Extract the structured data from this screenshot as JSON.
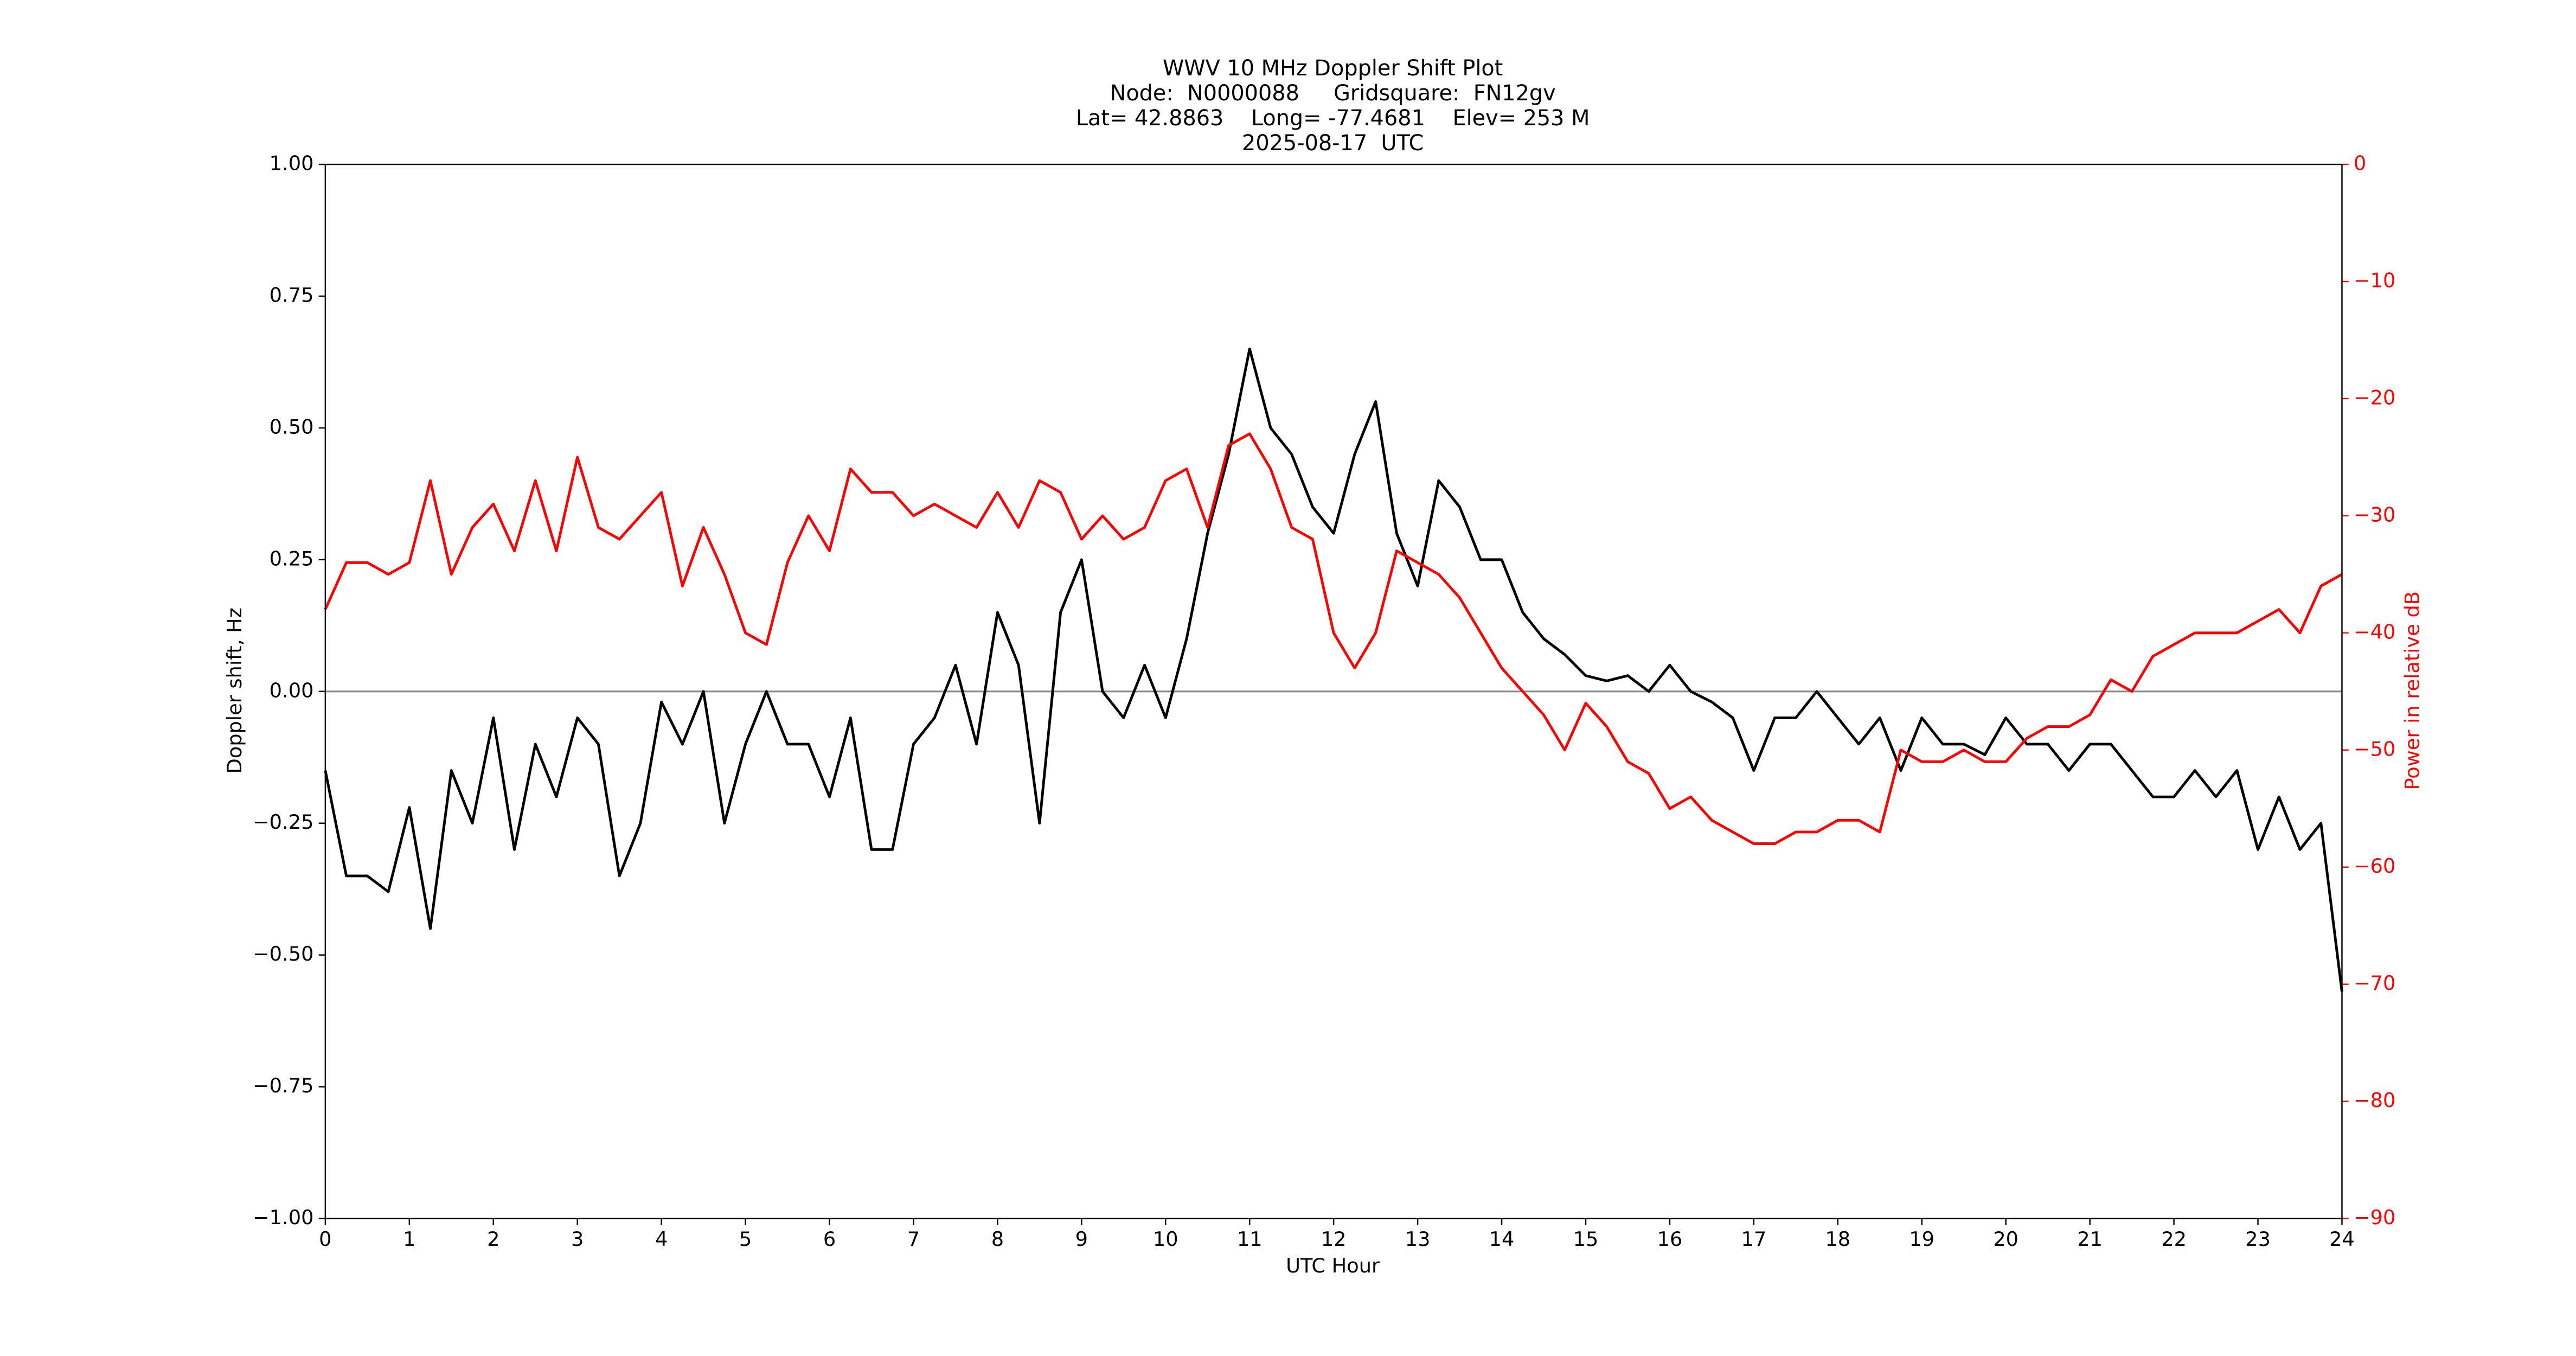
{
  "chart_data": {
    "type": "line",
    "title": [
      "WWV 10 MHz Doppler Shift Plot",
      "Node:  N0000088     Gridsquare:  FN12gv",
      "Lat= 42.8863    Long= -77.4681    Elev= 253 M",
      "2025-08-17  UTC"
    ],
    "xlabel": "UTC Hour",
    "ylabel": "Doppler shift, Hz",
    "y2label": "Power in relative dB",
    "xlim": [
      0,
      24
    ],
    "ylim": [
      -1,
      1
    ],
    "y2lim": [
      -90,
      0
    ],
    "xticks": [
      0,
      1,
      2,
      3,
      4,
      5,
      6,
      7,
      8,
      9,
      10,
      11,
      12,
      13,
      14,
      15,
      16,
      17,
      18,
      19,
      20,
      21,
      22,
      23,
      24
    ],
    "yticks": [
      {
        "value": -1,
        "label": "−1.00"
      },
      {
        "value": -0.75,
        "label": "−0.75"
      },
      {
        "value": -0.5,
        "label": "−0.50"
      },
      {
        "value": -0.25,
        "label": "−0.25"
      },
      {
        "value": 0,
        "label": "0.00"
      },
      {
        "value": 0.25,
        "label": "0.25"
      },
      {
        "value": 0.5,
        "label": "0.50"
      },
      {
        "value": 0.75,
        "label": "0.75"
      },
      {
        "value": 1,
        "label": "1.00"
      }
    ],
    "y2ticks": [
      {
        "value": -90,
        "label": "−90"
      },
      {
        "value": -80,
        "label": "−80"
      },
      {
        "value": -70,
        "label": "−70"
      },
      {
        "value": -60,
        "label": "−60"
      },
      {
        "value": -50,
        "label": "−50"
      },
      {
        "value": -40,
        "label": "−40"
      },
      {
        "value": -30,
        "label": "−30"
      },
      {
        "value": -20,
        "label": "−20"
      },
      {
        "value": -10,
        "label": "−10"
      },
      0
    ],
    "hlines": [
      0
    ],
    "hline_color": "#888888",
    "x": [
      0,
      0.25,
      0.5,
      0.75,
      1,
      1.25,
      1.5,
      1.75,
      2,
      2.25,
      2.5,
      2.75,
      3,
      3.25,
      3.5,
      3.75,
      4,
      4.25,
      4.5,
      4.75,
      5,
      5.25,
      5.5,
      5.75,
      6,
      6.25,
      6.5,
      6.75,
      7,
      7.25,
      7.5,
      7.75,
      8,
      8.25,
      8.5,
      8.75,
      9,
      9.25,
      9.5,
      9.75,
      10,
      10.25,
      10.5,
      10.75,
      11,
      11.25,
      11.5,
      11.75,
      12,
      12.25,
      12.5,
      12.75,
      13,
      13.25,
      13.5,
      13.75,
      14,
      14.25,
      14.5,
      14.75,
      15,
      15.25,
      15.5,
      15.75,
      16,
      16.25,
      16.5,
      16.75,
      17,
      17.25,
      17.5,
      17.75,
      18,
      18.25,
      18.5,
      18.75,
      19,
      19.25,
      19.5,
      19.75,
      20,
      20.25,
      20.5,
      20.75,
      21,
      21.25,
      21.5,
      21.75,
      22,
      22.25,
      22.5,
      22.75,
      23,
      23.25,
      23.5,
      23.75,
      24
    ],
    "series": [
      {
        "name": "Doppler shift",
        "color": "#000000",
        "values": [
          -0.15,
          -0.35,
          -0.35,
          -0.38,
          -0.22,
          -0.45,
          -0.15,
          -0.25,
          -0.05,
          -0.3,
          -0.1,
          -0.2,
          -0.05,
          -0.1,
          -0.35,
          -0.25,
          -0.02,
          -0.1,
          0,
          -0.25,
          -0.1,
          0,
          -0.1,
          -0.1,
          -0.2,
          -0.05,
          -0.3,
          -0.3,
          -0.1,
          -0.05,
          0.05,
          -0.1,
          0.15,
          0.05,
          -0.25,
          0.15,
          0.25,
          0,
          -0.05,
          0.05,
          -0.05,
          0.1,
          0.3,
          0.45,
          0.65,
          0.5,
          0.45,
          0.35,
          0.3,
          0.45,
          0.55,
          0.3,
          0.2,
          0.4,
          0.35,
          0.25,
          0.25,
          0.15,
          0.1,
          0.07,
          0.03,
          0.02,
          0.03,
          0,
          0.05,
          0,
          -0.02,
          -0.05,
          -0.15,
          -0.05,
          -0.05,
          0,
          -0.05,
          -0.1,
          -0.05,
          -0.15,
          -0.05,
          -0.1,
          -0.1,
          -0.12,
          -0.05,
          -0.1,
          -0.1,
          -0.15,
          -0.1,
          -0.1,
          -0.15,
          -0.2,
          -0.2,
          -0.15,
          -0.2,
          -0.15,
          -0.3,
          -0.2,
          -0.3,
          -0.25,
          -0.57
        ]
      },
      {
        "name": "Power",
        "color": "#ff0000",
        "axis": "y2",
        "values": [
          -38,
          -34,
          -34,
          -35,
          -34,
          -27,
          -35,
          -31,
          -29,
          -33,
          -27,
          -33,
          -25,
          -31,
          -32,
          -30,
          -28,
          -36,
          -31,
          -35,
          -40,
          -41,
          -34,
          -30,
          -33,
          -26,
          -28,
          -28,
          -30,
          -29,
          -30,
          -31,
          -28,
          -31,
          -27,
          -28,
          -32,
          -30,
          -32,
          -31,
          -27,
          -26,
          -31,
          -24,
          -23,
          -26,
          -31,
          -32,
          -40,
          -43,
          -40,
          -33,
          -34,
          -35,
          -37,
          -40,
          -43,
          -45,
          -47,
          -50,
          -46,
          -48,
          -51,
          -52,
          -55,
          -54,
          -56,
          -57,
          -58,
          -58,
          -57,
          -57,
          -56,
          -56,
          -57,
          -50,
          -51,
          -51,
          -50,
          -51,
          -51,
          -49,
          -48,
          -48,
          -47,
          -44,
          -45,
          -42,
          -41,
          -40,
          -40,
          -40,
          -39,
          -38,
          -40,
          -36,
          -35
        ]
      }
    ]
  }
}
